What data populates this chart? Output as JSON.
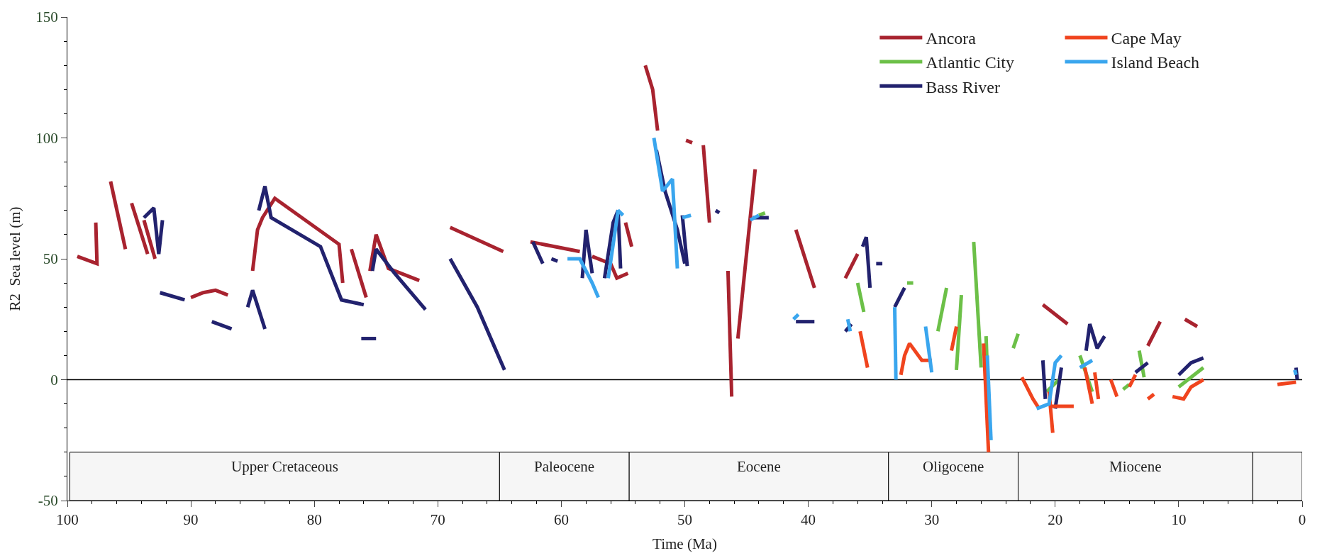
{
  "chart_data": {
    "type": "line",
    "xlabel": "Time (Ma)",
    "ylabel": "R2  Sea level (m)",
    "xlim": [
      100,
      0
    ],
    "xticks": [
      100,
      90,
      80,
      70,
      60,
      50,
      40,
      30,
      20,
      10,
      0
    ],
    "ylim": [
      -50,
      150
    ],
    "yticks": [
      -50,
      0,
      50,
      100,
      150
    ],
    "grid": false,
    "legend": "top right",
    "line_style": "solid",
    "marker": "none",
    "series": [
      {
        "name": "Ancora",
        "color": "#a8232f",
        "x": [
          99.2,
          97.6,
          97.7,
          null,
          96.5,
          95.3,
          null,
          94.8,
          93.5,
          null,
          93.8,
          92.9,
          null,
          90,
          89,
          88,
          87,
          null,
          85,
          84.6,
          84.2,
          83.2,
          78,
          77.7,
          null,
          77,
          75.8,
          null,
          75.5,
          75,
          74,
          71.5,
          null,
          69,
          64.7,
          null,
          62.5,
          58.5,
          null,
          57.5,
          56,
          55.5,
          54.6,
          null,
          54.8,
          54.3,
          null,
          53.2,
          52.6,
          52.2,
          null,
          49.9,
          49.4,
          null,
          48.5,
          48,
          null,
          46.5,
          46.2,
          null,
          45.7,
          44.3,
          null,
          41,
          39.5,
          null,
          37,
          36,
          null,
          21,
          19,
          null,
          12.5,
          11.5,
          null,
          9.5,
          8.5
        ],
        "values": [
          51,
          48,
          65,
          null,
          82,
          54,
          null,
          73,
          52,
          null,
          66,
          50,
          null,
          34,
          36,
          37,
          35,
          null,
          45,
          62,
          67,
          75,
          56,
          40,
          null,
          54,
          34,
          null,
          45,
          60,
          46,
          41,
          null,
          63,
          53,
          null,
          57,
          53,
          null,
          51,
          48,
          42,
          44,
          null,
          65,
          55,
          null,
          130,
          120,
          103,
          null,
          99,
          98,
          null,
          97,
          65,
          null,
          45,
          -7,
          null,
          17,
          87,
          null,
          62,
          38,
          null,
          42,
          52,
          null,
          31,
          23,
          null,
          14,
          24,
          null,
          25,
          22
        ]
      },
      {
        "name": "Atlantic City",
        "color": "#6cc048",
        "x": [
          44,
          43.5,
          null,
          36,
          35.5,
          null,
          32,
          31.5,
          null,
          29.5,
          28.8,
          null,
          28,
          27.6,
          null,
          26.6,
          26,
          null,
          25.6,
          25.3,
          null,
          23.4,
          23,
          null,
          20.7,
          19.7,
          null,
          18,
          17,
          null,
          14.5,
          14,
          null,
          13.2,
          12.8,
          null,
          10,
          8
        ],
        "values": [
          68,
          69,
          null,
          40,
          28,
          null,
          40,
          40,
          null,
          20,
          38,
          null,
          4,
          35,
          null,
          57,
          5,
          null,
          18,
          -25,
          null,
          13,
          19,
          null,
          -5,
          0,
          null,
          10,
          -5,
          null,
          -4,
          -2,
          null,
          12,
          1,
          null,
          -3,
          5
        ]
      },
      {
        "name": "Bass River",
        "color": "#22226e",
        "x": [
          93.8,
          93,
          92.6,
          92.3,
          null,
          92.5,
          90.5,
          null,
          88.3,
          86.7,
          null,
          85.4,
          85,
          84,
          null,
          84.5,
          84,
          83.5,
          79.5,
          77.8,
          76,
          null,
          76.2,
          75,
          null,
          75.3,
          75,
          73.5,
          71,
          null,
          69,
          66.8,
          64.6,
          null,
          62.3,
          61.5,
          null,
          60.8,
          60.3,
          null,
          58.3,
          58,
          57.5,
          null,
          56.5,
          55.8,
          55.4,
          55.2,
          null,
          52.3,
          51.6,
          50.6,
          50,
          null,
          50.2,
          49.8,
          null,
          47.5,
          47.2,
          null,
          44.5,
          43.2,
          null,
          41,
          39.5,
          null,
          37,
          36.5,
          null,
          35.6,
          35.3,
          35,
          null,
          34.5,
          34,
          null,
          33,
          32.2,
          null,
          21,
          20.8,
          null,
          20,
          19.5,
          null,
          17.5,
          17.2,
          16.6,
          16,
          null,
          13.5,
          12.5,
          null,
          10,
          9,
          8,
          null,
          0.5,
          0.4
        ],
        "values": [
          67,
          71,
          52,
          66,
          null,
          36,
          33,
          null,
          24,
          21,
          null,
          30,
          37,
          21,
          null,
          70,
          80,
          67,
          55,
          33,
          31,
          null,
          17,
          17,
          null,
          45,
          54,
          44,
          29,
          null,
          50,
          30,
          4,
          null,
          57,
          48,
          null,
          50,
          49,
          null,
          42,
          62,
          44,
          null,
          42,
          65,
          70,
          46,
          null,
          95,
          78,
          62,
          48,
          null,
          68,
          47,
          null,
          70,
          69,
          null,
          67,
          67,
          null,
          24,
          24,
          null,
          20,
          23,
          null,
          55,
          59,
          38,
          null,
          48,
          48,
          null,
          30,
          38,
          null,
          8,
          -8,
          null,
          -12,
          5,
          null,
          12,
          23,
          13,
          18,
          null,
          3,
          7,
          null,
          2,
          7,
          9,
          null,
          5,
          0
        ]
      },
      {
        "name": "Cape May",
        "color": "#f0441e",
        "x": [
          35.8,
          35.2,
          null,
          32.5,
          32.2,
          31.8,
          30.8,
          30,
          null,
          28.4,
          28,
          null,
          25.8,
          25.4,
          null,
          22.7,
          21.8,
          21.3,
          null,
          20.5,
          20.2,
          null,
          20.3,
          18.5,
          null,
          17.6,
          17,
          null,
          16.8,
          16.5,
          null,
          15.5,
          15,
          null,
          14,
          13.5,
          null,
          12.5,
          12,
          null,
          10.5,
          9.6,
          9,
          8,
          null,
          2,
          0.5
        ],
        "values": [
          20,
          5,
          null,
          2,
          10,
          15,
          8,
          8,
          null,
          12,
          22,
          null,
          15,
          -30,
          null,
          1,
          -8,
          -12,
          null,
          -5,
          -22,
          null,
          -11,
          -11,
          null,
          5,
          -10,
          null,
          3,
          -8,
          null,
          0,
          -7,
          null,
          -3,
          2,
          null,
          -8,
          -6,
          null,
          -7,
          -8,
          -3,
          0,
          null,
          -2,
          -1
        ]
      },
      {
        "name": "Island Beach",
        "color": "#3aa6ee",
        "x": [
          59.5,
          58.5,
          57.5,
          57,
          null,
          56.2,
          55.4,
          55,
          null,
          52.5,
          51.8,
          51,
          50.6,
          null,
          50.2,
          49.5,
          null,
          44.7,
          44,
          null,
          41.2,
          40.8,
          null,
          36.8,
          36.6,
          null,
          33,
          32.9,
          null,
          30.5,
          30,
          null,
          25.5,
          25.2,
          null,
          21.5,
          20.5,
          20,
          19.5,
          null,
          18,
          17,
          null,
          0.6,
          0.5
        ],
        "values": [
          50,
          50,
          40,
          34,
          null,
          42,
          70,
          68,
          null,
          100,
          78,
          83,
          46,
          null,
          67,
          68,
          null,
          66,
          68,
          null,
          25,
          27,
          null,
          25,
          20,
          null,
          30,
          0,
          null,
          22,
          3,
          null,
          10,
          -25,
          null,
          -12,
          -10,
          7,
          10,
          null,
          5,
          8,
          null,
          4,
          2
        ]
      }
    ],
    "ref_lines": [
      {
        "axis": "y",
        "value": 0,
        "color": "#000000",
        "line_style": "solid"
      }
    ],
    "bands": [
      {
        "axis": "x",
        "from": 99.8,
        "to": 65,
        "label": "Upper Cretaceous",
        "color": "#f6f6f6"
      },
      {
        "axis": "x",
        "from": 65,
        "to": 54.5,
        "label": "Paleocene",
        "color": "#f6f6f6"
      },
      {
        "axis": "x",
        "from": 54.5,
        "to": 33.5,
        "label": "Eocene",
        "color": "#f6f6f6"
      },
      {
        "axis": "x",
        "from": 33.5,
        "to": 23,
        "label": "Oligocene",
        "color": "#f6f6f6"
      },
      {
        "axis": "x",
        "from": 23,
        "to": 4,
        "label": "Miocene",
        "color": "#f6f6f6"
      },
      {
        "axis": "x",
        "from": 4,
        "to": 0,
        "label": null,
        "color": "#f6f6f6"
      }
    ]
  }
}
